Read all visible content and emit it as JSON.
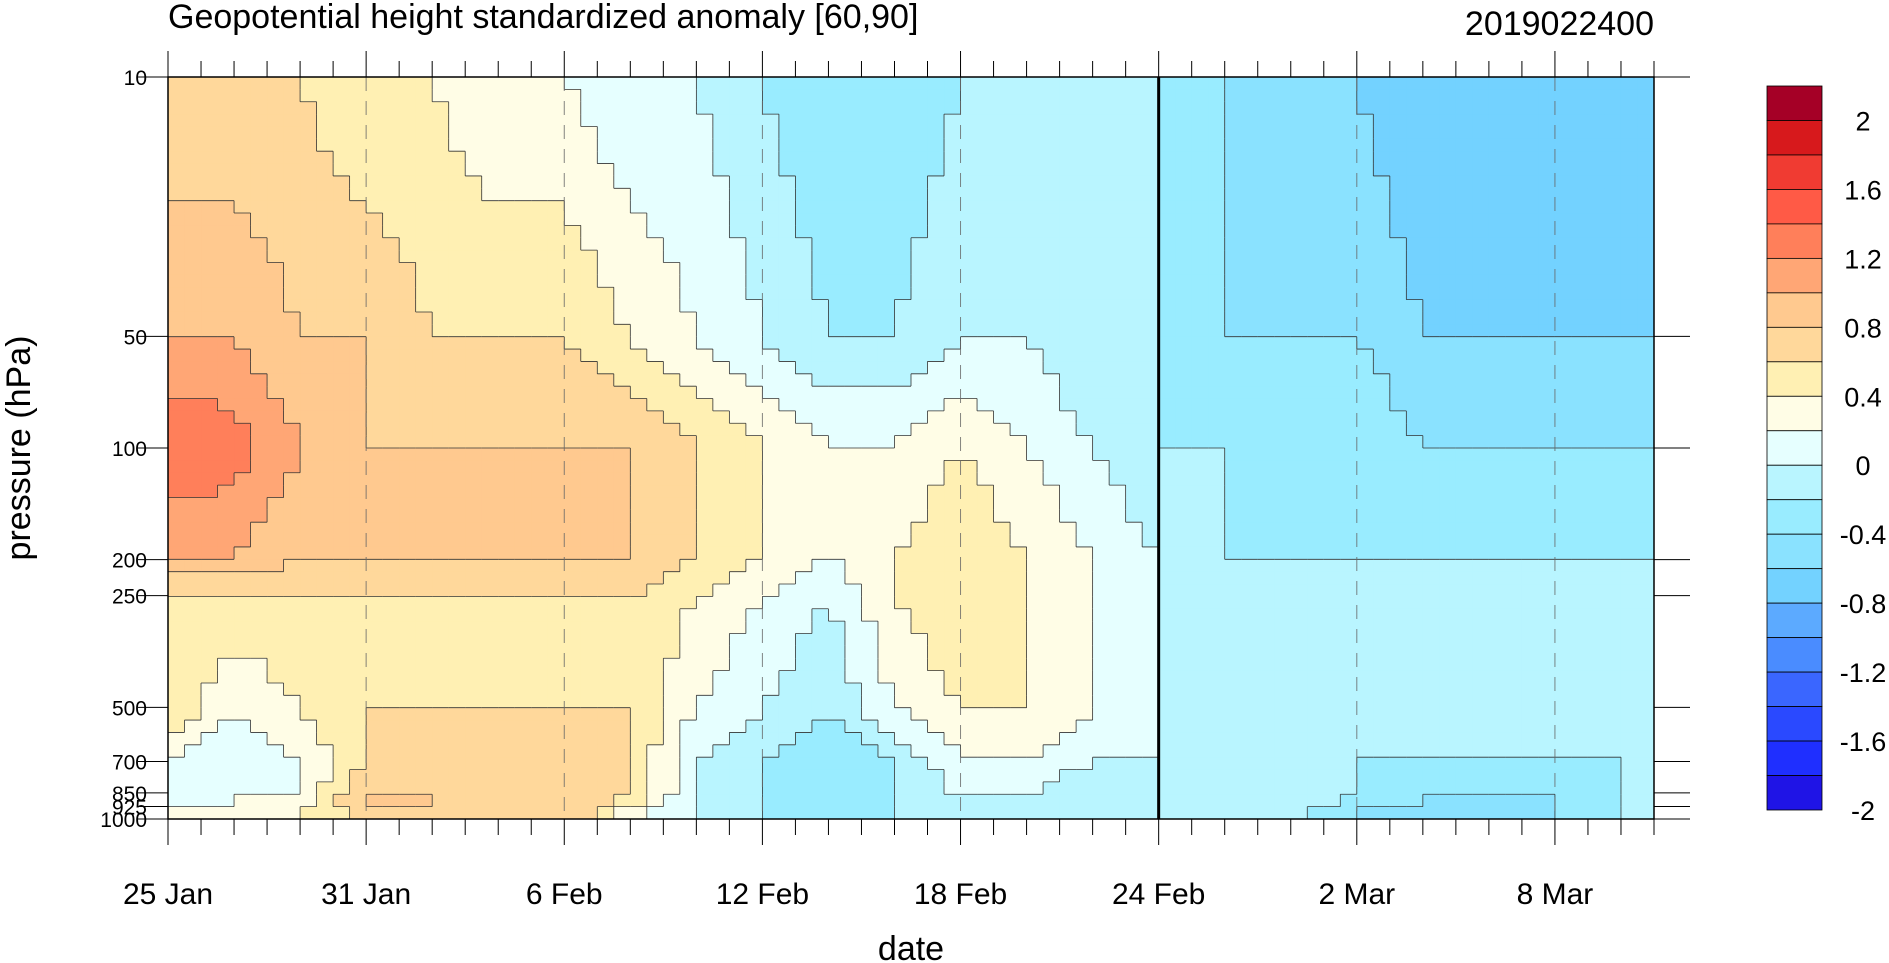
{
  "chart_data": {
    "type": "heatmap",
    "title": "Geopotential height standardized anomaly [60,90]",
    "timestamp": "2019022400",
    "xlabel": "date",
    "ylabel": "pressure (hPa)",
    "x_ticks": [
      "25 Jan",
      "31 Jan",
      "6 Feb",
      "12 Feb",
      "18 Feb",
      "24 Feb",
      "2 Mar",
      "8 Mar"
    ],
    "x_range_days": [
      0,
      45
    ],
    "y_ticks": [
      "10",
      "50",
      "100",
      "200",
      "250",
      "500",
      "700",
      "850",
      "925",
      "1000"
    ],
    "y_range": [
      10,
      1000
    ],
    "y_scale": "log-pressure",
    "vertical_marker": "24 Feb",
    "colorbar": {
      "labels": [
        "2",
        "1.6",
        "1.2",
        "0.8",
        "0.4",
        "0",
        "-0.4",
        "-0.8",
        "-1.2",
        "-1.6",
        "-2"
      ],
      "colors": [
        "#a50026",
        "#d7191c",
        "#f03b32",
        "#ff5a46",
        "#ff7f5a",
        "#ffa675",
        "#ffc98f",
        "#ffd89b",
        "#fff0b3",
        "#fffde6",
        "#e6ffff",
        "#b9f5ff",
        "#99ecff",
        "#8ae2ff",
        "#73d2ff",
        "#5caaff",
        "#4a8cff",
        "#3a66ff",
        "#2a49ff",
        "#1f2fff",
        "#1f14e6"
      ]
    },
    "profiles": [
      {
        "x": 0,
        "values": [
          0.4,
          0.8,
          1.2,
          0.8,
          0.4,
          0.4,
          0.0,
          0.0,
          0.0,
          0.2
        ]
      },
      {
        "x": 2,
        "values": [
          0.4,
          0.8,
          1.1,
          0.8,
          0.4,
          0.0,
          -0.2,
          0.0,
          0.0,
          0.0
        ]
      },
      {
        "x": 4,
        "values": [
          0.4,
          0.6,
          0.8,
          0.6,
          0.4,
          0.2,
          0.0,
          0.0,
          0.2,
          0.2
        ]
      },
      {
        "x": 6,
        "values": [
          0.2,
          0.6,
          0.6,
          0.6,
          0.4,
          0.4,
          0.4,
          0.6,
          0.6,
          0.4
        ]
      },
      {
        "x": 8,
        "values": [
          0.2,
          0.4,
          0.6,
          0.6,
          0.4,
          0.4,
          0.6,
          0.6,
          0.6,
          0.6
        ]
      },
      {
        "x": 10,
        "values": [
          0.0,
          0.4,
          0.6,
          0.6,
          0.4,
          0.4,
          0.4,
          0.4,
          0.4,
          0.4
        ]
      },
      {
        "x": 12,
        "values": [
          0.0,
          0.4,
          0.6,
          0.6,
          0.4,
          0.4,
          0.6,
          0.6,
          0.6,
          0.6
        ]
      },
      {
        "x": 14,
        "values": [
          -0.2,
          0.2,
          0.6,
          0.6,
          0.4,
          0.4,
          0.4,
          0.4,
          0.2,
          0.0
        ]
      },
      {
        "x": 16,
        "values": [
          -0.2,
          0.0,
          0.4,
          0.4,
          0.2,
          0.0,
          -0.2,
          -0.2,
          -0.2,
          -0.2
        ]
      },
      {
        "x": 18,
        "values": [
          -0.4,
          -0.2,
          0.2,
          0.2,
          0.0,
          -0.2,
          -0.4,
          -0.4,
          -0.4,
          -0.4
        ]
      },
      {
        "x": 20,
        "values": [
          -0.6,
          -0.4,
          0.0,
          0.0,
          -0.2,
          -0.4,
          -0.6,
          -0.6,
          -0.6,
          -0.6
        ]
      },
      {
        "x": 22,
        "values": [
          -0.6,
          -0.4,
          0.0,
          0.2,
          0.2,
          0.0,
          -0.4,
          -0.4,
          -0.4,
          -0.4
        ]
      },
      {
        "x": 24,
        "values": [
          -0.4,
          -0.2,
          0.2,
          0.4,
          0.4,
          0.2,
          0.0,
          -0.2,
          -0.2,
          -0.4
        ]
      },
      {
        "x": 26,
        "values": [
          -0.4,
          -0.2,
          0.0,
          0.2,
          0.2,
          0.2,
          0.0,
          -0.2,
          -0.2,
          -0.4
        ]
      },
      {
        "x": 28,
        "values": [
          -0.4,
          -0.4,
          -0.2,
          0.0,
          0.0,
          0.0,
          -0.2,
          -0.4,
          -0.4,
          -0.4
        ]
      },
      {
        "x": 30,
        "values": [
          -0.4,
          -0.4,
          -0.4,
          -0.2,
          -0.2,
          -0.2,
          -0.2,
          -0.2,
          -0.2,
          -0.2
        ]
      },
      {
        "x": 32,
        "values": [
          -0.6,
          -0.6,
          -0.4,
          -0.4,
          -0.2,
          -0.2,
          -0.2,
          -0.2,
          -0.2,
          -0.2
        ]
      },
      {
        "x": 34,
        "values": [
          -0.8,
          -0.6,
          -0.6,
          -0.4,
          -0.2,
          -0.2,
          -0.2,
          -0.2,
          -0.2,
          -0.4
        ]
      },
      {
        "x": 36,
        "values": [
          -0.8,
          -0.6,
          -0.4,
          -0.4,
          -0.4,
          -0.4,
          -0.4,
          -0.4,
          -0.6,
          -0.6
        ]
      },
      {
        "x": 38,
        "values": [
          -1.0,
          -0.8,
          -0.6,
          -0.4,
          -0.4,
          -0.4,
          -0.4,
          -0.6,
          -0.6,
          -0.6
        ]
      },
      {
        "x": 40,
        "values": [
          -1.0,
          -0.8,
          -0.6,
          -0.4,
          -0.4,
          -0.4,
          -0.4,
          -0.6,
          -0.6,
          -0.6
        ]
      },
      {
        "x": 42,
        "values": [
          -1.0,
          -0.8,
          -0.6,
          -0.4,
          -0.4,
          -0.4,
          -0.4,
          -0.6,
          -0.6,
          -0.6
        ]
      },
      {
        "x": 44,
        "values": [
          -1.0,
          -0.8,
          -0.6,
          -0.4,
          -0.4,
          -0.4,
          -0.4,
          -0.4,
          -0.4,
          -0.4
        ]
      },
      {
        "x": 45,
        "values": [
          -1.0,
          -0.8,
          -0.6,
          -0.4,
          -0.4,
          -0.4,
          -0.4,
          -0.4,
          -0.4,
          -0.4
        ]
      }
    ]
  }
}
